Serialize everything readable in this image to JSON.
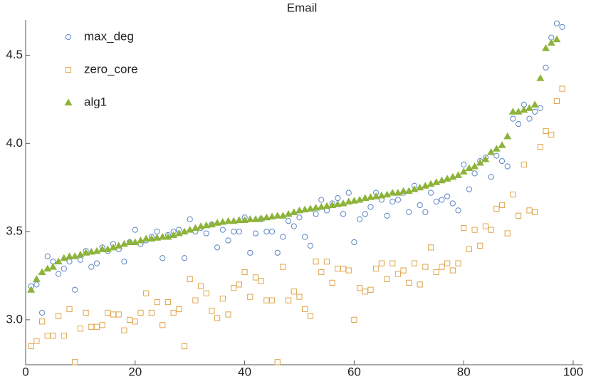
{
  "chart_data": {
    "type": "scatter",
    "title": "Email",
    "x": [
      1,
      2,
      3,
      4,
      5,
      6,
      7,
      8,
      9,
      10,
      11,
      12,
      13,
      14,
      15,
      16,
      17,
      18,
      19,
      20,
      21,
      22,
      23,
      24,
      25,
      26,
      27,
      28,
      29,
      30,
      31,
      32,
      33,
      34,
      35,
      36,
      37,
      38,
      39,
      40,
      41,
      42,
      43,
      44,
      45,
      46,
      47,
      48,
      49,
      50,
      51,
      52,
      53,
      54,
      55,
      56,
      57,
      58,
      59,
      60,
      61,
      62,
      63,
      64,
      65,
      66,
      67,
      68,
      69,
      70,
      71,
      72,
      73,
      74,
      75,
      76,
      77,
      78,
      79,
      80,
      81,
      82,
      83,
      84,
      85,
      86,
      87,
      88,
      89,
      90,
      91,
      92,
      93,
      94,
      95,
      96,
      97,
      98
    ],
    "series": [
      {
        "name": "max_deg",
        "color": "#5b84c4",
        "marker": "circle",
        "values": [
          3.19,
          3.2,
          3.04,
          3.36,
          3.33,
          3.26,
          3.29,
          3.33,
          3.17,
          3.34,
          3.39,
          3.3,
          3.32,
          3.41,
          3.39,
          3.43,
          3.4,
          3.33,
          3.44,
          3.51,
          3.43,
          3.45,
          3.47,
          3.5,
          3.35,
          3.48,
          3.5,
          3.51,
          3.35,
          3.57,
          3.5,
          3.52,
          3.49,
          3.54,
          3.41,
          3.51,
          3.45,
          3.5,
          3.5,
          3.58,
          3.38,
          3.49,
          3.57,
          3.5,
          3.5,
          3.38,
          3.47,
          3.56,
          3.53,
          3.58,
          3.47,
          3.42,
          3.6,
          3.68,
          3.62,
          3.66,
          3.69,
          3.6,
          3.72,
          3.44,
          3.57,
          3.6,
          3.64,
          3.72,
          3.68,
          3.59,
          3.67,
          3.68,
          3.72,
          3.61,
          3.76,
          3.65,
          3.61,
          3.72,
          3.67,
          3.68,
          3.7,
          3.66,
          3.62,
          3.88,
          3.74,
          3.83,
          3.9,
          3.92,
          3.81,
          3.93,
          3.9,
          3.87,
          4.14,
          4.11,
          4.22,
          4.14,
          4.18,
          4.2,
          4.43,
          4.6,
          4.68,
          4.66
        ]
      },
      {
        "name": "zero_core",
        "color": "#e0a448",
        "marker": "square",
        "values": [
          2.85,
          2.88,
          2.99,
          2.91,
          2.91,
          3.02,
          2.91,
          3.06,
          2.76,
          2.95,
          3.04,
          2.96,
          2.96,
          2.97,
          3.04,
          3.03,
          3.03,
          2.94,
          3.0,
          2.99,
          3.04,
          3.15,
          3.04,
          3.1,
          2.97,
          3.1,
          3.04,
          3.06,
          2.85,
          3.23,
          3.11,
          3.19,
          3.15,
          3.05,
          3.01,
          3.12,
          3.03,
          3.18,
          3.2,
          3.27,
          3.13,
          3.24,
          3.22,
          3.11,
          3.11,
          2.76,
          3.3,
          3.11,
          3.16,
          3.13,
          3.06,
          3.02,
          3.33,
          3.27,
          3.33,
          3.21,
          3.29,
          3.29,
          3.28,
          3.0,
          3.18,
          3.16,
          3.17,
          3.29,
          3.32,
          3.23,
          3.32,
          3.26,
          3.28,
          3.21,
          3.32,
          3.2,
          3.3,
          3.41,
          3.27,
          3.3,
          3.32,
          3.28,
          3.32,
          3.52,
          3.4,
          3.51,
          3.42,
          3.53,
          3.51,
          3.63,
          3.65,
          3.49,
          3.71,
          3.59,
          3.88,
          3.62,
          3.61,
          3.98,
          4.07,
          4.05,
          4.24,
          4.31
        ]
      },
      {
        "name": "alg1",
        "color": "#8db33a",
        "marker": "triangle",
        "values": [
          3.17,
          3.23,
          3.27,
          3.29,
          3.3,
          3.33,
          3.35,
          3.36,
          3.36,
          3.37,
          3.38,
          3.385,
          3.39,
          3.4,
          3.4,
          3.41,
          3.42,
          3.43,
          3.44,
          3.44,
          3.45,
          3.46,
          3.46,
          3.465,
          3.47,
          3.47,
          3.48,
          3.49,
          3.5,
          3.51,
          3.52,
          3.53,
          3.535,
          3.54,
          3.55,
          3.555,
          3.56,
          3.56,
          3.565,
          3.565,
          3.57,
          3.57,
          3.575,
          3.58,
          3.585,
          3.59,
          3.59,
          3.6,
          3.61,
          3.62,
          3.625,
          3.63,
          3.635,
          3.64,
          3.645,
          3.65,
          3.655,
          3.66,
          3.67,
          3.675,
          3.68,
          3.69,
          3.695,
          3.7,
          3.705,
          3.71,
          3.72,
          3.72,
          3.73,
          3.73,
          3.74,
          3.75,
          3.76,
          3.77,
          3.78,
          3.79,
          3.8,
          3.81,
          3.82,
          3.84,
          3.86,
          3.87,
          3.89,
          3.91,
          3.95,
          3.97,
          3.99,
          4.04,
          4.18,
          4.18,
          4.19,
          4.2,
          4.22,
          4.37,
          4.54,
          4.57,
          4.59,
          null
        ]
      }
    ],
    "xlim": [
      0,
      100
    ],
    "ylim": [
      2.745,
      4.7
    ],
    "xticks": [
      0,
      20,
      40,
      60,
      80,
      100
    ],
    "yticks": [
      {
        "value": 3,
        "label": "3.0"
      },
      3.5,
      {
        "value": 4,
        "label": "4.0"
      },
      4.5
    ],
    "legend": "top-left"
  }
}
